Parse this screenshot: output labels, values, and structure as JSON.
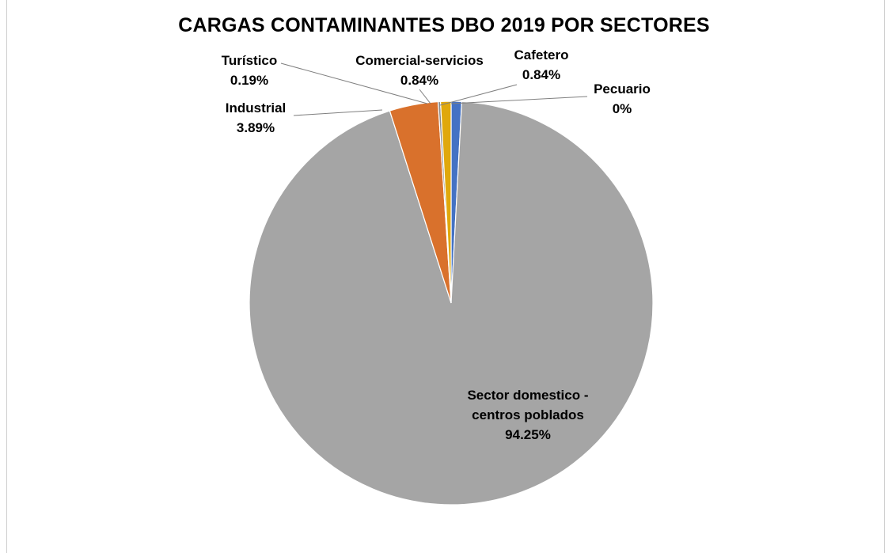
{
  "chart_data": {
    "type": "pie",
    "title": "CARGAS CONTAMINANTES DBO 2019 POR SECTORES",
    "slices": [
      {
        "label": "Cafetero",
        "value": 0.84,
        "value_text": "0.84%",
        "color": "#4472C4"
      },
      {
        "label": "Sector domestico - centros poblados",
        "label_lines": [
          "Sector domestico -",
          "centros poblados"
        ],
        "value": 94.25,
        "value_text": "94.25%",
        "color": "#A5A5A5"
      },
      {
        "label": "Industrial",
        "value": 3.89,
        "value_text": "3.89%",
        "color": "#D9712C"
      },
      {
        "label": "Turístico",
        "value": 0.19,
        "value_text": "0.19%",
        "color": "#8A8A8A"
      },
      {
        "label": "Comercial-servicios",
        "value": 0.84,
        "value_text": "0.84%",
        "color": "#E0A80C"
      },
      {
        "label": "Pecuario",
        "value": 0,
        "value_text": "0%",
        "color": "#5B9BD5"
      }
    ],
    "legend": "none",
    "data_labels": "category-and-percent"
  }
}
